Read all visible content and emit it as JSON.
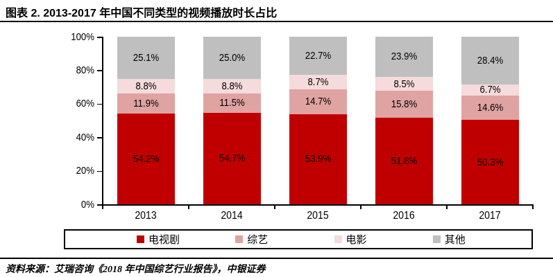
{
  "title": "图表 2. 2013-2017 年中国不同类型的视频播放时长占比",
  "source": "资料来源：艾瑞咨询《2018 年中国综艺行业报告》，中银证券",
  "colors": {
    "axis": "#000000",
    "label_text": "#000000",
    "series_tv_drama": "#C00000",
    "series_variety": "#DFA3A2",
    "series_movie": "#F5DBDB",
    "series_other": "#BFBFBF"
  },
  "chart_data": {
    "type": "bar",
    "stacked": true,
    "categories": [
      "2013",
      "2014",
      "2015",
      "2016",
      "2017"
    ],
    "series": [
      {
        "name": "电视剧",
        "color": "#C00000",
        "values": [
          54.2,
          54.7,
          53.9,
          51.8,
          50.3
        ]
      },
      {
        "name": "综艺",
        "color": "#DFA3A2",
        "values": [
          11.9,
          11.5,
          14.7,
          15.8,
          14.6
        ]
      },
      {
        "name": "电影",
        "color": "#F5DBDB",
        "values": [
          8.8,
          8.8,
          8.7,
          8.5,
          6.7
        ]
      },
      {
        "name": "其他",
        "color": "#BFBFBF",
        "values": [
          25.1,
          25.0,
          22.7,
          23.9,
          28.4
        ]
      }
    ],
    "title": "2013-2017 年中国不同类型的视频播放时长占比",
    "xlabel": "",
    "ylabel": "",
    "ylim": [
      0,
      100
    ],
    "yticks": [
      "0%",
      "20%",
      "40%",
      "60%",
      "80%",
      "100%"
    ],
    "grid": false,
    "legend_position": "bottom",
    "value_label_format": "one_decimal_percent"
  }
}
